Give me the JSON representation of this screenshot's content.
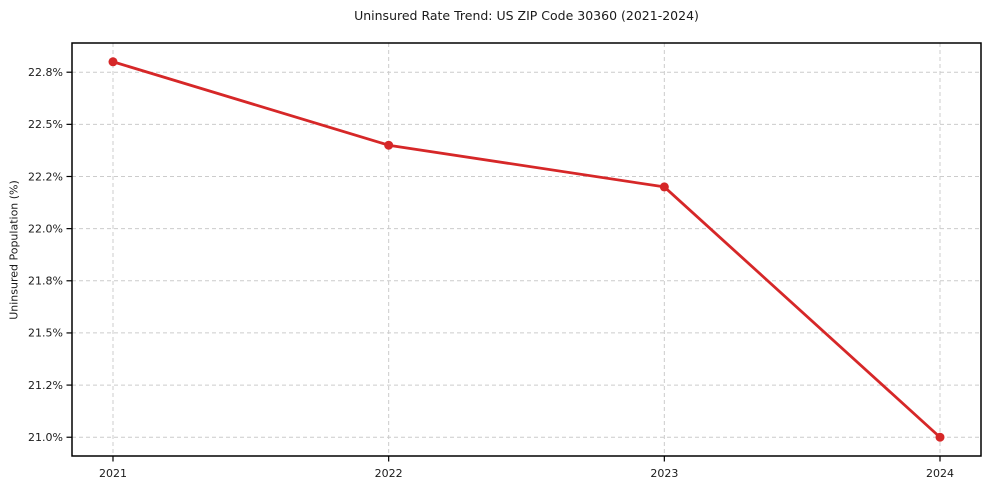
{
  "chart_data": {
    "type": "line",
    "title": "Uninsured Rate Trend: US ZIP Code 30360 (2021-2024)",
    "xlabel": "",
    "ylabel": "Uninsured Population (%)",
    "categories": [
      "2021",
      "2022",
      "2023",
      "2024"
    ],
    "values": [
      22.8,
      22.4,
      22.2,
      21.0
    ],
    "ylim": [
      20.91,
      22.89
    ],
    "yticks": {
      "values": [
        21.0,
        21.25,
        21.5,
        21.75,
        22.0,
        22.25,
        22.5,
        22.75
      ],
      "labels": [
        "21.0%",
        "21.2%",
        "21.5%",
        "21.8%",
        "22.0%",
        "22.2%",
        "22.5%",
        "22.8%"
      ]
    },
    "grid": true,
    "grid_style": "dashed",
    "legend": false,
    "marker": "circle",
    "colors": {
      "line": "#d62728",
      "grid": "#cccccc",
      "spine": "#000000",
      "tick": "#000000",
      "text": "#1a1a1a",
      "background": "#ffffff"
    }
  }
}
